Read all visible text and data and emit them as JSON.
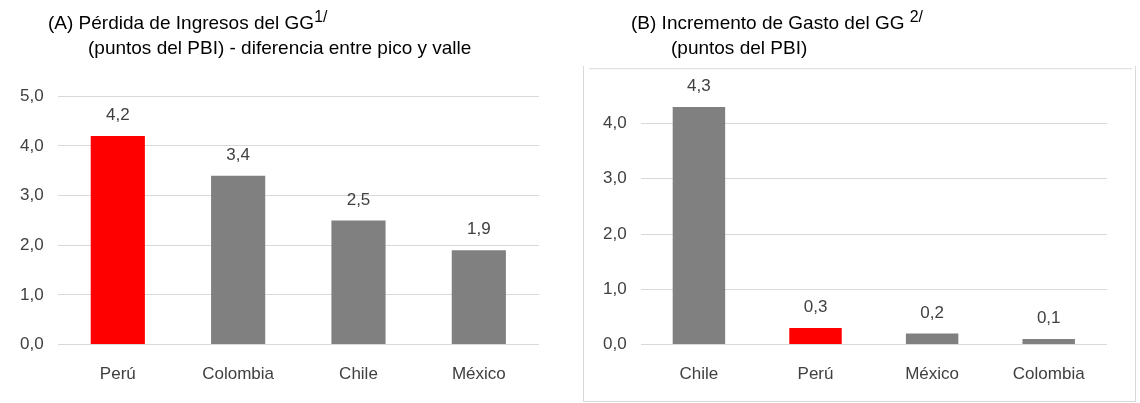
{
  "chart_data": [
    {
      "type": "bar",
      "title": "(A)   Pérdida de Ingresos del GG$^{1/}$",
      "subtitle": "(puntos del PBI) - diferencia entre pico y valle",
      "categories": [
        "Perú",
        "Colombia",
        "Chile",
        "México"
      ],
      "values": [
        4.2,
        3.4,
        2.5,
        1.9
      ],
      "colors": [
        "#ff0000",
        "#808080",
        "#808080",
        "#808080"
      ],
      "value_labels": [
        "4,2",
        "3,4",
        "2,5",
        "1,9"
      ],
      "ylim": [
        0,
        5
      ],
      "yticks": [
        {
          "value": 0,
          "label": "0,0"
        },
        {
          "value": 1,
          "label": "1,0"
        },
        {
          "value": 2,
          "label": "2,0"
        },
        {
          "value": 3,
          "label": "3,0"
        },
        {
          "value": 4,
          "label": "4,0"
        },
        {
          "value": 5,
          "label": "5,0"
        }
      ],
      "grid": "y",
      "legend": false
    },
    {
      "type": "bar",
      "title": "(B)   Incremento de Gasto del GG $^{2/}$",
      "subtitle": "(puntos del PBI)",
      "categories": [
        "Chile",
        "Perú",
        "México",
        "Colombia"
      ],
      "values": [
        4.3,
        0.3,
        0.2,
        0.1
      ],
      "colors": [
        "#808080",
        "#ff0000",
        "#808080",
        "#808080"
      ],
      "value_labels": [
        "4,3",
        "0,3",
        "0,2",
        "0,1"
      ],
      "ylim": [
        0,
        5
      ],
      "yticks": [
        {
          "value": 0,
          "label": "0,0"
        },
        {
          "value": 1,
          "label": "1,0"
        },
        {
          "value": 2,
          "label": "2,0"
        },
        {
          "value": 3,
          "label": "3,0"
        },
        {
          "value": 4,
          "label": "4,0"
        }
      ],
      "grid": "y",
      "legend": false
    }
  ]
}
